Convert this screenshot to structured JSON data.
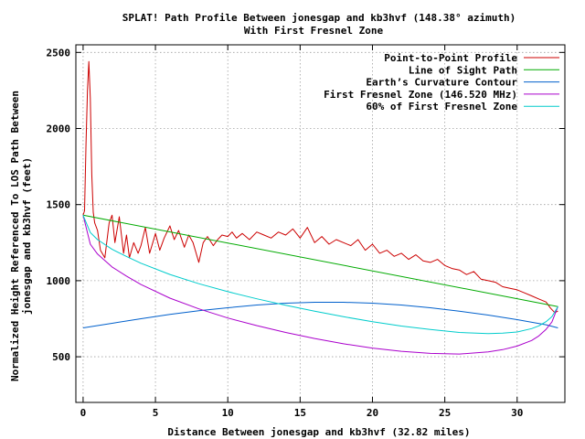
{
  "chart_data": {
    "type": "line",
    "title": "SPLAT! Path Profile Between jonesgap and kb3hvf (148.38° azimuth)",
    "subtitle": "With First Fresnel Zone",
    "xlabel": "Distance Between jonesgap and kb3hvf (32.82 miles)",
    "ylabel_line1": "Normalized Height Referenced To LOS Path Between",
    "ylabel_line2": "jonesgap and kb3hvf (feet)",
    "xlim": [
      -0.5,
      33.3
    ],
    "ylim": [
      200,
      2550
    ],
    "x_ticks": [
      0,
      5,
      10,
      15,
      20,
      25,
      30
    ],
    "y_ticks": [
      500,
      1000,
      1500,
      2000,
      2500
    ],
    "grid": true,
    "legend_position": "top-right",
    "series": [
      {
        "name": "Point-to-Point Profile",
        "color": "#cc0000",
        "x": [
          0,
          0.1,
          0.2,
          0.3,
          0.4,
          0.5,
          0.6,
          0.7,
          0.8,
          1.0,
          1.2,
          1.5,
          1.8,
          2.0,
          2.2,
          2.5,
          2.8,
          3.0,
          3.2,
          3.5,
          3.8,
          4.0,
          4.3,
          4.6,
          5.0,
          5.3,
          5.6,
          6.0,
          6.3,
          6.6,
          7.0,
          7.3,
          7.6,
          8.0,
          8.3,
          8.6,
          9.0,
          9.3,
          9.6,
          10.0,
          10.3,
          10.6,
          11.0,
          11.5,
          12.0,
          12.5,
          13.0,
          13.5,
          14.0,
          14.5,
          15.0,
          15.5,
          16.0,
          16.5,
          17.0,
          17.5,
          18.0,
          18.5,
          19.0,
          19.5,
          20.0,
          20.5,
          21.0,
          21.5,
          22.0,
          22.5,
          23.0,
          23.5,
          24.0,
          24.5,
          25.0,
          25.5,
          26.0,
          26.5,
          27.0,
          27.5,
          28.0,
          28.5,
          29.0,
          29.5,
          30.0,
          30.5,
          31.0,
          31.5,
          32.0,
          32.3,
          32.6,
          32.82
        ],
        "values": [
          1430,
          1460,
          1900,
          2250,
          2440,
          2200,
          1700,
          1450,
          1380,
          1330,
          1200,
          1150,
          1380,
          1430,
          1250,
          1420,
          1180,
          1300,
          1150,
          1250,
          1180,
          1230,
          1350,
          1180,
          1310,
          1200,
          1280,
          1360,
          1270,
          1330,
          1220,
          1300,
          1250,
          1120,
          1250,
          1290,
          1230,
          1270,
          1300,
          1290,
          1320,
          1280,
          1310,
          1270,
          1320,
          1300,
          1280,
          1320,
          1300,
          1340,
          1280,
          1350,
          1250,
          1290,
          1240,
          1270,
          1250,
          1230,
          1270,
          1200,
          1240,
          1180,
          1200,
          1160,
          1180,
          1140,
          1170,
          1130,
          1120,
          1140,
          1100,
          1080,
          1070,
          1040,
          1060,
          1010,
          1000,
          990,
          960,
          950,
          940,
          920,
          900,
          880,
          860,
          820,
          790,
          800
        ]
      },
      {
        "name": "Line of Sight Path",
        "color": "#00aa00",
        "x": [
          0,
          32.82
        ],
        "values": [
          1430,
          830
        ]
      },
      {
        "name": "Earth’s Curvature Contour",
        "color": "#0060cc",
        "x": [
          0,
          2,
          4,
          6,
          8,
          10,
          12,
          14,
          16,
          18,
          20,
          22,
          24,
          26,
          28,
          30,
          32,
          32.82
        ],
        "values": [
          690,
          720,
          750,
          778,
          802,
          822,
          840,
          852,
          858,
          858,
          852,
          840,
          822,
          800,
          774,
          744,
          710,
          690
        ]
      },
      {
        "name": "First Fresnel Zone (146.520 MHz)",
        "color": "#aa00cc",
        "x": [
          0,
          0.5,
          1,
          2,
          3,
          4,
          6,
          8,
          10,
          12,
          14,
          16,
          18,
          20,
          22,
          24,
          26,
          28,
          29,
          30,
          31,
          31.5,
          32,
          32.4,
          32.82
        ],
        "values": [
          1430,
          1240,
          1175,
          1090,
          1030,
          975,
          885,
          815,
          755,
          705,
          660,
          620,
          585,
          557,
          536,
          522,
          518,
          532,
          547,
          570,
          607,
          637,
          680,
          728,
          830
        ]
      },
      {
        "name": "60% of First Fresnel Zone",
        "color": "#00cccc",
        "x": [
          0,
          0.5,
          1,
          2,
          3,
          4,
          6,
          8,
          10,
          12,
          14,
          16,
          18,
          20,
          22,
          24,
          26,
          28,
          29,
          30,
          31,
          31.5,
          32,
          32.4,
          32.82
        ],
        "values": [
          1430,
          1317,
          1270,
          1206,
          1159,
          1115,
          1041,
          980,
          928,
          881,
          838,
          799,
          763,
          731,
          702,
          679,
          660,
          652,
          655,
          663,
          685,
          703,
          731,
          763,
          830
        ]
      }
    ]
  }
}
